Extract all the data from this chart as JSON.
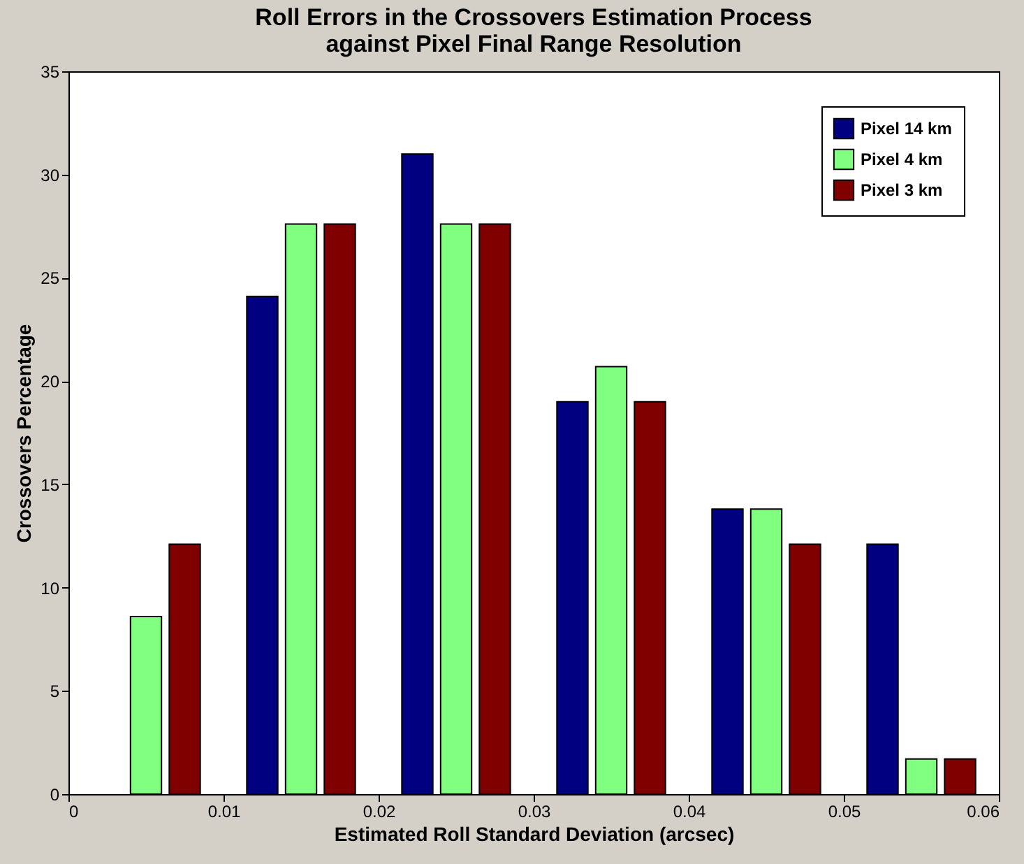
{
  "chart_data": {
    "type": "bar",
    "title": "Roll Errors in the Crossovers Estimation Process\nagainst Pixel Final Range Resolution",
    "xlabel": "Estimated Roll Standard Deviation (arcsec)",
    "ylabel": "Crossovers Percentage",
    "x": [
      0.005,
      0.015,
      0.025,
      0.035,
      0.045,
      0.055
    ],
    "series": [
      {
        "name": "Pixel 14 km",
        "color": "#000080",
        "values": [
          null,
          24.1,
          31.0,
          19.0,
          13.8,
          12.1
        ]
      },
      {
        "name": "Pixel 4 km",
        "color": "#80ff80",
        "values": [
          8.6,
          27.6,
          27.6,
          20.7,
          13.8,
          1.7
        ]
      },
      {
        "name": "Pixel 3 km",
        "color": "#800000",
        "values": [
          12.1,
          27.6,
          27.6,
          19.0,
          12.1,
          1.7
        ]
      }
    ],
    "xlim": [
      0,
      0.06
    ],
    "xticks": [
      0,
      0.01,
      0.02,
      0.03,
      0.04,
      0.05,
      0.06
    ],
    "ylim": [
      0,
      35
    ],
    "yticks": [
      0,
      5,
      10,
      15,
      20,
      25,
      30,
      35
    ],
    "legend": "top right",
    "grid": false
  }
}
